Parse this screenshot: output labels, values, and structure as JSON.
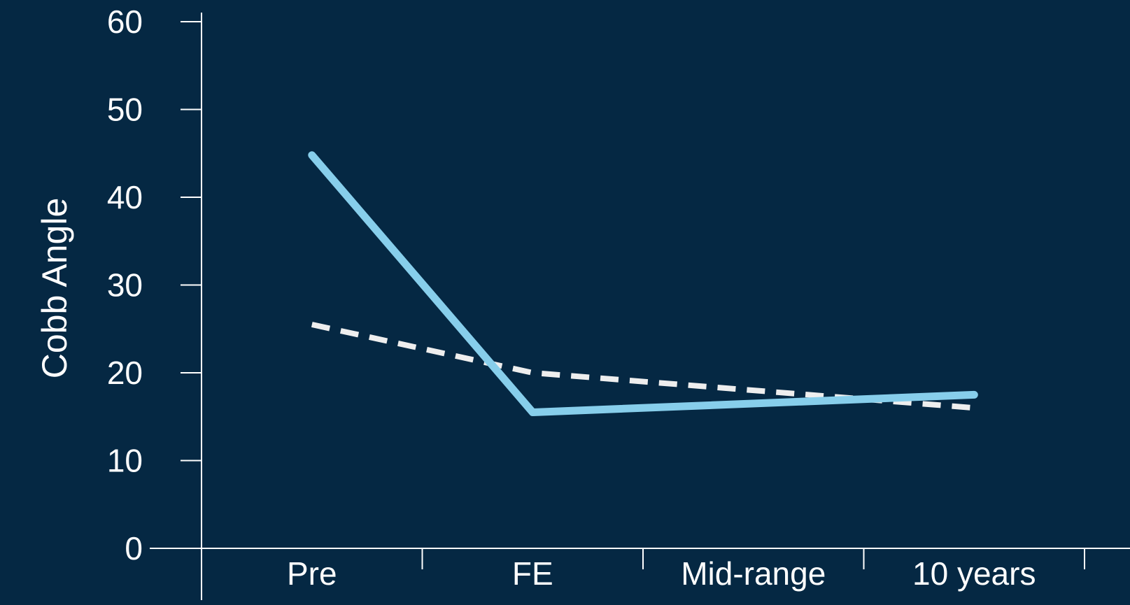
{
  "chart_data": {
    "type": "line",
    "title": "",
    "xlabel": "",
    "ylabel": "Cobb Angle",
    "categories": [
      "Pre",
      "FE",
      "Mid-range",
      "10 years"
    ],
    "ylim": [
      0,
      60
    ],
    "yticks": [
      0,
      10,
      20,
      30,
      40,
      50,
      60
    ],
    "grid": false,
    "legend": "none",
    "series": [
      {
        "style": "solid",
        "color": "#87CEEB",
        "values": [
          44.8,
          15.5,
          null,
          17.5
        ]
      },
      {
        "style": "dashed",
        "color": "#EEEEEE",
        "values": [
          25.5,
          20,
          null,
          16
        ]
      }
    ]
  },
  "colors": {
    "background": "#052843",
    "axis": "#FFFFFF"
  }
}
